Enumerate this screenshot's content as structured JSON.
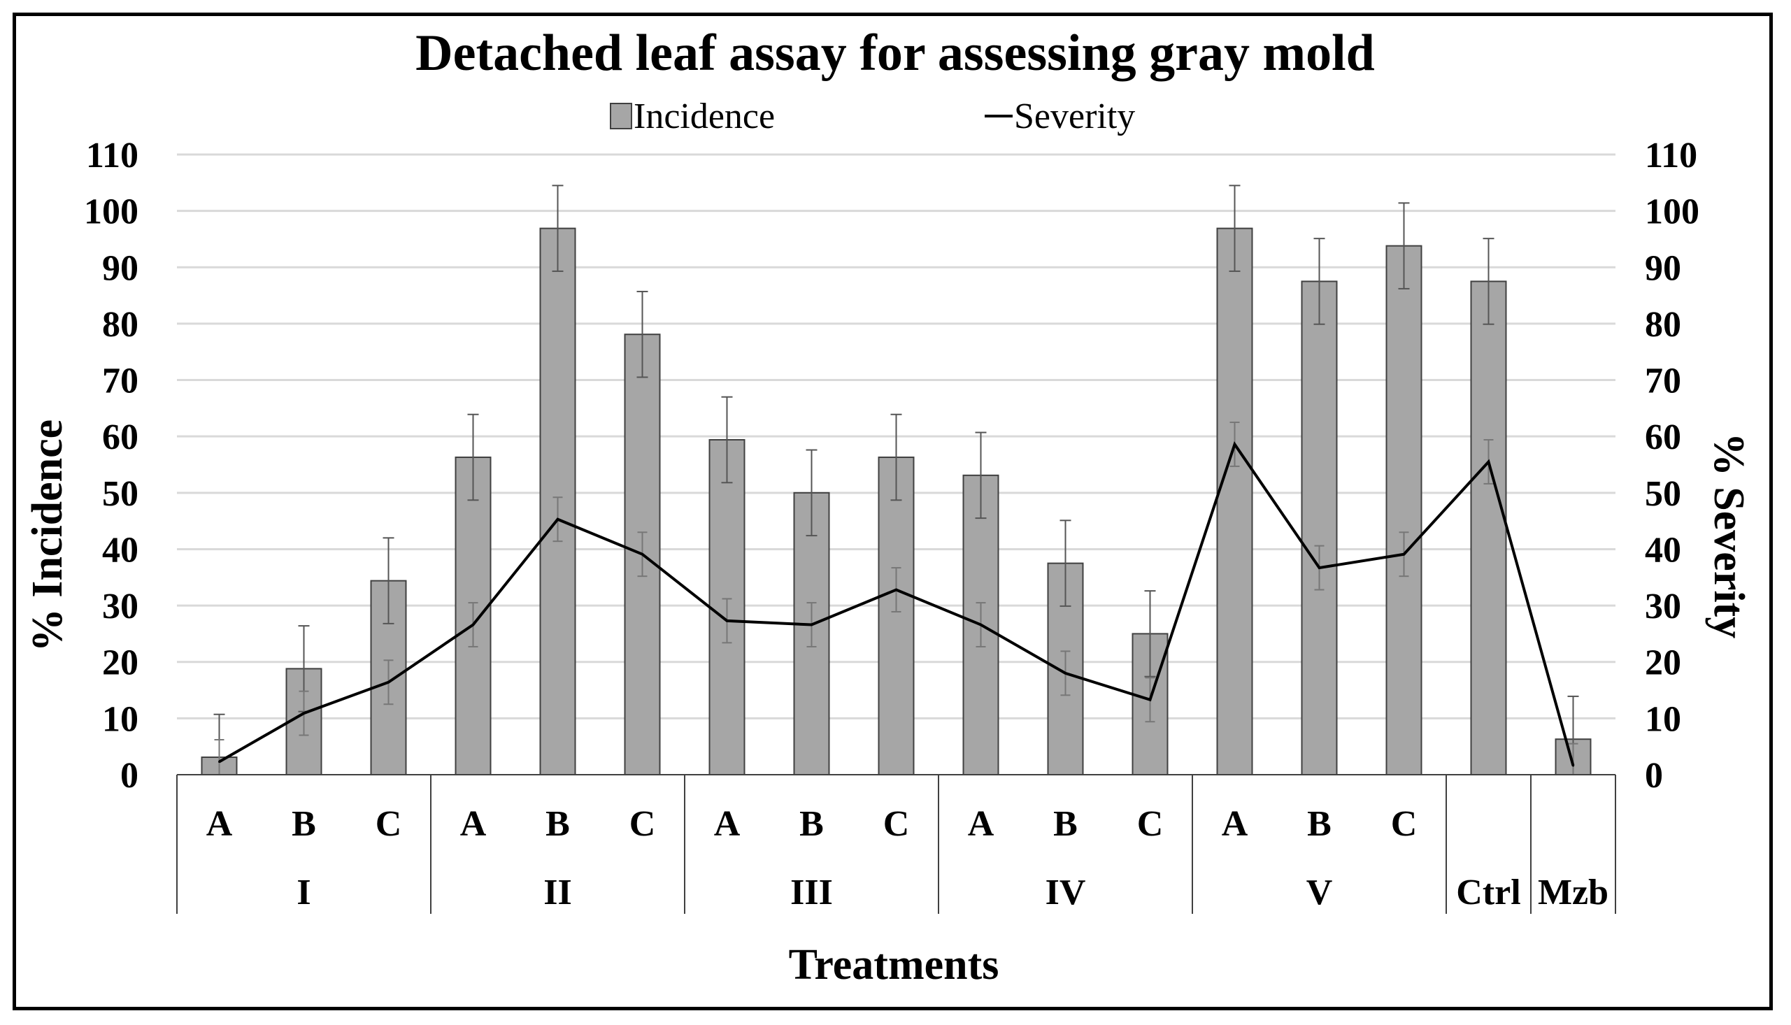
{
  "chart_data": {
    "type": "bar",
    "title": "Detached leaf assay for assessing gray mold",
    "xlabel": "Treatments",
    "ylabel": "% Incidence",
    "y2label": "% Severity",
    "ylim": [
      0,
      110
    ],
    "y2lim": [
      0,
      110
    ],
    "yticks": [
      "0",
      "10",
      "20",
      "30",
      "40",
      "50",
      "60",
      "70",
      "80",
      "90",
      "100",
      "110"
    ],
    "legend": {
      "position": "top-center",
      "entries": [
        "Incidence",
        "Severity"
      ]
    },
    "grid": true,
    "categories": [
      "A",
      "B",
      "C",
      "A",
      "B",
      "C",
      "A",
      "B",
      "C",
      "A",
      "B",
      "C",
      "A",
      "B",
      "C",
      "",
      ""
    ],
    "groups": [
      {
        "label": "I",
        "count": 3
      },
      {
        "label": "II",
        "count": 3
      },
      {
        "label": "III",
        "count": 3
      },
      {
        "label": "IV",
        "count": 3
      },
      {
        "label": "V",
        "count": 3
      },
      {
        "label": "Ctrl",
        "count": 1
      },
      {
        "label": "Mzb",
        "count": 1
      }
    ],
    "series": [
      {
        "name": "Incidence",
        "type": "bar",
        "axis": "left",
        "color": "#a6a6a6",
        "values": [
          3.1,
          18.8,
          34.4,
          56.3,
          96.9,
          78.1,
          59.4,
          50.0,
          56.3,
          53.1,
          37.5,
          25.0,
          96.9,
          87.5,
          93.8,
          87.5,
          6.3
        ],
        "errors": [
          7.6,
          7.6,
          7.6,
          7.6,
          7.6,
          7.6,
          7.6,
          7.6,
          7.6,
          7.6,
          7.6,
          7.6,
          7.6,
          7.6,
          7.6,
          7.6,
          7.6
        ]
      },
      {
        "name": "Severity",
        "type": "line",
        "axis": "right",
        "color": "#000000",
        "values": [
          2.3,
          10.9,
          16.4,
          26.6,
          45.3,
          39.1,
          27.3,
          26.6,
          32.8,
          26.6,
          18.0,
          13.3,
          58.6,
          36.7,
          39.1,
          55.5,
          1.6
        ],
        "errors": [
          3.9,
          3.9,
          3.9,
          3.9,
          3.9,
          3.9,
          3.9,
          3.9,
          3.9,
          3.9,
          3.9,
          3.9,
          3.9,
          3.9,
          3.9,
          3.9,
          3.9
        ]
      }
    ]
  }
}
